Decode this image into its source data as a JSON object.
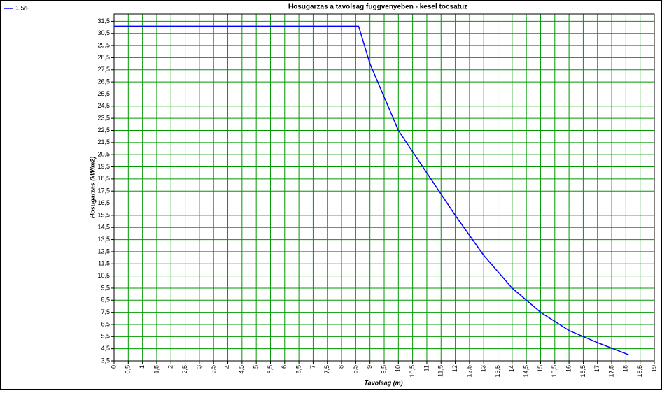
{
  "chart_data": {
    "type": "line",
    "title": "Hosugarzas a tavolsag fuggvenyeben - kesel tocsatuz",
    "x_label": "Tavolsag (m)",
    "y_label": "Hosugarzas (kW/m2)",
    "x": [
      0,
      8.6,
      9,
      10,
      11,
      12,
      13,
      14,
      15,
      16,
      17,
      18.1
    ],
    "series": [
      {
        "name": "1,5/F",
        "color": "#0000ff",
        "values": [
          31.1,
          31.1,
          28.0,
          22.5,
          19.0,
          15.5,
          12.2,
          9.5,
          7.5,
          6.0,
          5.0,
          4.0
        ]
      }
    ],
    "xlim": [
      0,
      19
    ],
    "ylim": [
      3.5,
      32.1
    ],
    "grid": true,
    "grid_color": "#009900",
    "xticks": [
      0,
      {
        "value": 0.5,
        "label": "0,5"
      },
      1,
      {
        "value": 1.5,
        "label": "1,5"
      },
      2,
      {
        "value": 2.5,
        "label": "2,5"
      },
      3,
      {
        "value": 3.5,
        "label": "3,5"
      },
      4,
      {
        "value": 4.5,
        "label": "4,5"
      },
      5,
      {
        "value": 5.5,
        "label": "5,5"
      },
      6,
      {
        "value": 6.5,
        "label": "6,5"
      },
      7,
      {
        "value": 7.5,
        "label": "7,5"
      },
      8,
      {
        "value": 8.5,
        "label": "8,5"
      },
      9,
      {
        "value": 9.5,
        "label": "9,5"
      },
      10,
      {
        "value": 10.5,
        "label": "10,5"
      },
      11,
      {
        "value": 11.5,
        "label": "11,5"
      },
      12,
      {
        "value": 12.5,
        "label": "12,5"
      },
      13,
      {
        "value": 13.5,
        "label": "13,5"
      },
      14,
      {
        "value": 14.5,
        "label": "14,5"
      },
      15,
      {
        "value": 15.5,
        "label": "15,5"
      },
      16,
      {
        "value": 16.5,
        "label": "16,5"
      },
      17,
      {
        "value": 17.5,
        "label": "17,5"
      },
      18,
      {
        "value": 18.5,
        "label": "18,5"
      },
      19
    ],
    "yticks": [
      {
        "value": 3.5,
        "label": "3,5"
      },
      {
        "value": 4.5,
        "label": "4,5"
      },
      {
        "value": 5.5,
        "label": "5,5"
      },
      {
        "value": 6.5,
        "label": "6,5"
      },
      {
        "value": 7.5,
        "label": "7,5"
      },
      {
        "value": 8.5,
        "label": "8,5"
      },
      {
        "value": 9.5,
        "label": "9,5"
      },
      {
        "value": 10.5,
        "label": "10,5"
      },
      {
        "value": 11.5,
        "label": "11,5"
      },
      {
        "value": 12.5,
        "label": "12,5"
      },
      {
        "value": 13.5,
        "label": "13,5"
      },
      {
        "value": 14.5,
        "label": "14,5"
      },
      {
        "value": 15.5,
        "label": "15,5"
      },
      {
        "value": 16.5,
        "label": "16,5"
      },
      {
        "value": 17.5,
        "label": "17,5"
      },
      {
        "value": 18.5,
        "label": "18,5"
      },
      {
        "value": 19.5,
        "label": "19,5"
      },
      {
        "value": 20.5,
        "label": "20,5"
      },
      {
        "value": 21.5,
        "label": "21,5"
      },
      {
        "value": 22.5,
        "label": "22,5"
      },
      {
        "value": 23.5,
        "label": "23,5"
      },
      {
        "value": 24.5,
        "label": "24,5"
      },
      {
        "value": 25.5,
        "label": "25,5"
      },
      {
        "value": 26.5,
        "label": "26,5"
      },
      {
        "value": 27.5,
        "label": "27,5"
      },
      {
        "value": 28.5,
        "label": "28,5"
      },
      {
        "value": 29.5,
        "label": "29,5"
      },
      {
        "value": 30.5,
        "label": "30,5"
      },
      {
        "value": 31.5,
        "label": "31,5"
      }
    ]
  }
}
